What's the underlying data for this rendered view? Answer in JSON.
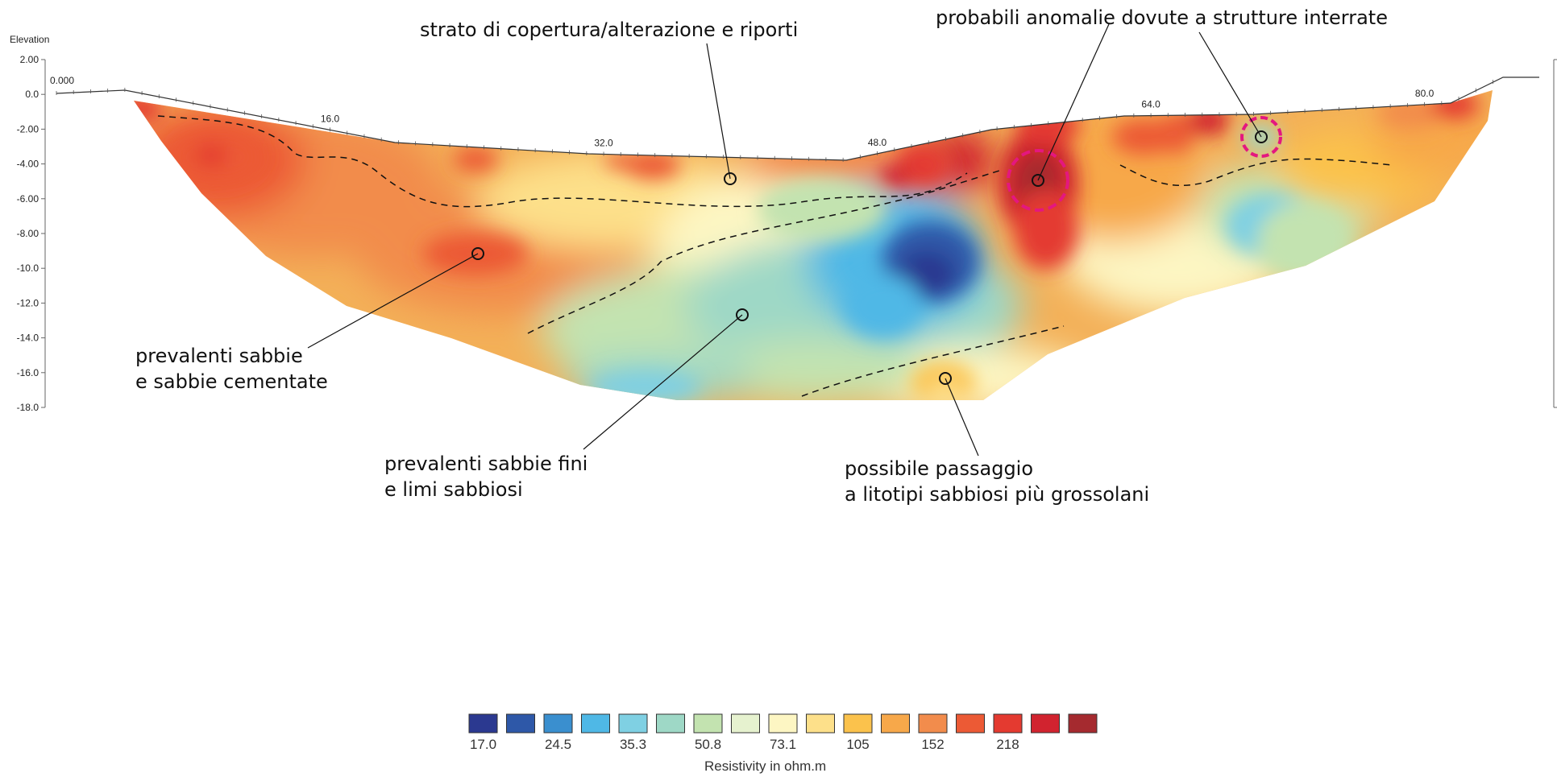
{
  "chart_data": {
    "type": "heatmap",
    "title": "",
    "ylabel": "Elevation",
    "y_ticks": [
      "2.00",
      "0.0",
      "-2.00",
      "-4.00",
      "-6.00",
      "-8.00",
      "-10.0",
      "-12.0",
      "-14.0",
      "-16.0",
      "-18.0"
    ],
    "ylim": [
      -18,
      2
    ],
    "x_labels": [
      "0.000",
      "16.0",
      "32.0",
      "48.0",
      "64.0",
      "80.0"
    ],
    "xlim": [
      0,
      84
    ],
    "colorbar": {
      "label": "Resistivity in ohm.m",
      "tick_labels": [
        "17.0",
        "24.5",
        "35.3",
        "50.8",
        "73.1",
        "105",
        "152",
        "218"
      ],
      "colors": [
        "#2b3990",
        "#2e58a8",
        "#3a8fcf",
        "#4fb8e6",
        "#7fd0e3",
        "#9ed8c6",
        "#c3e3b0",
        "#e6f2cf",
        "#fdf6c3",
        "#fde08a",
        "#fbc24c",
        "#f7a84a",
        "#f28c4c",
        "#ec5a35",
        "#e43a30",
        "#d1232f",
        "#a52a2f"
      ]
    },
    "annotations": [
      {
        "lines": [
          "strato di copertura/alterazione e riporti"
        ],
        "marker": [
          38.5,
          -4.9
        ]
      },
      {
        "lines": [
          "probabili anomalie dovute a strutture interrate"
        ],
        "marker": [
          55.0,
          -4.9
        ],
        "marker2": [
          67.0,
          -2.5
        ]
      },
      {
        "lines": [
          "prevalenti sabbie",
          "e sabbie cementate"
        ],
        "marker": [
          24.0,
          -9.1
        ]
      },
      {
        "lines": [
          "prevalenti sabbie fini",
          "e limi sabbiosi"
        ],
        "marker": [
          39.3,
          -12.6
        ]
      },
      {
        "lines": [
          "possibile passaggio",
          "a litotipi sabbiosi più grossolani"
        ],
        "marker": [
          50.0,
          -16.3
        ]
      }
    ]
  }
}
